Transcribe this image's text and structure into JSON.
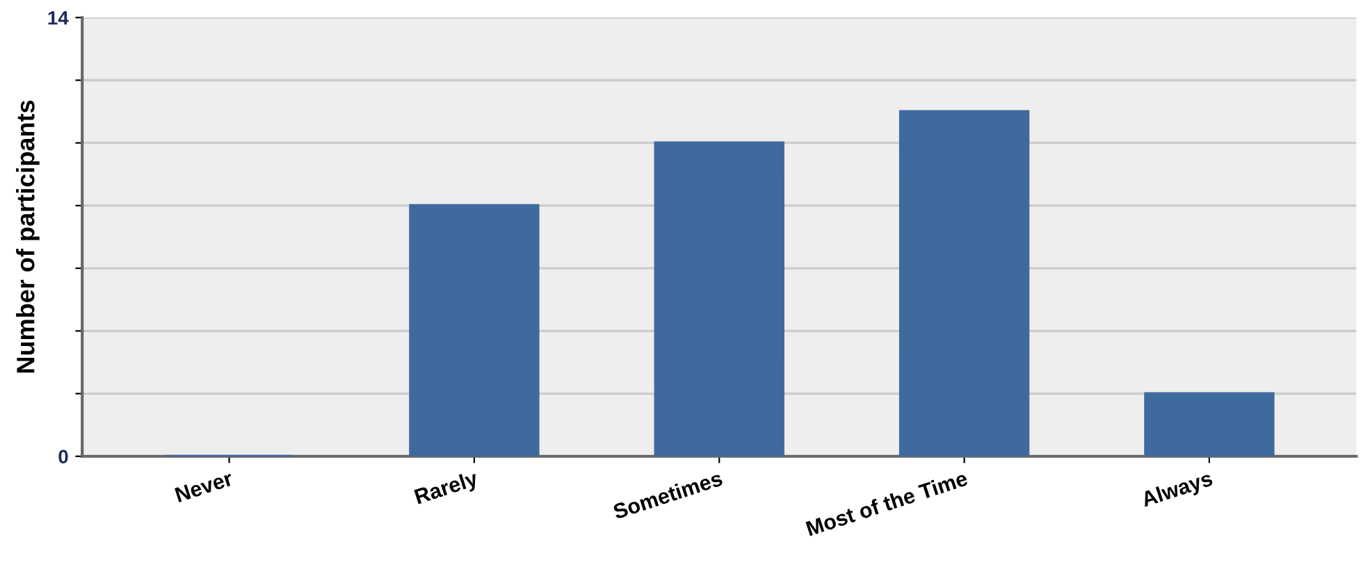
{
  "chart_data": {
    "type": "bar",
    "ylabel": "Number of participants",
    "categories": [
      "Never",
      "Rarely",
      "Sometimes",
      "Most of the Time",
      "Always"
    ],
    "values": [
      0,
      8,
      10,
      11,
      2
    ],
    "color": "#3f6a9e",
    "ylim": [
      0,
      14
    ],
    "yticks": [
      0,
      {
        "value": 2,
        "label": null
      },
      {
        "value": 4,
        "label": null
      },
      {
        "value": 6,
        "label": null
      },
      {
        "value": 8,
        "label": null
      },
      {
        "value": 10,
        "label": null
      },
      {
        "value": 12,
        "label": null
      },
      14
    ],
    "grid": "y"
  }
}
